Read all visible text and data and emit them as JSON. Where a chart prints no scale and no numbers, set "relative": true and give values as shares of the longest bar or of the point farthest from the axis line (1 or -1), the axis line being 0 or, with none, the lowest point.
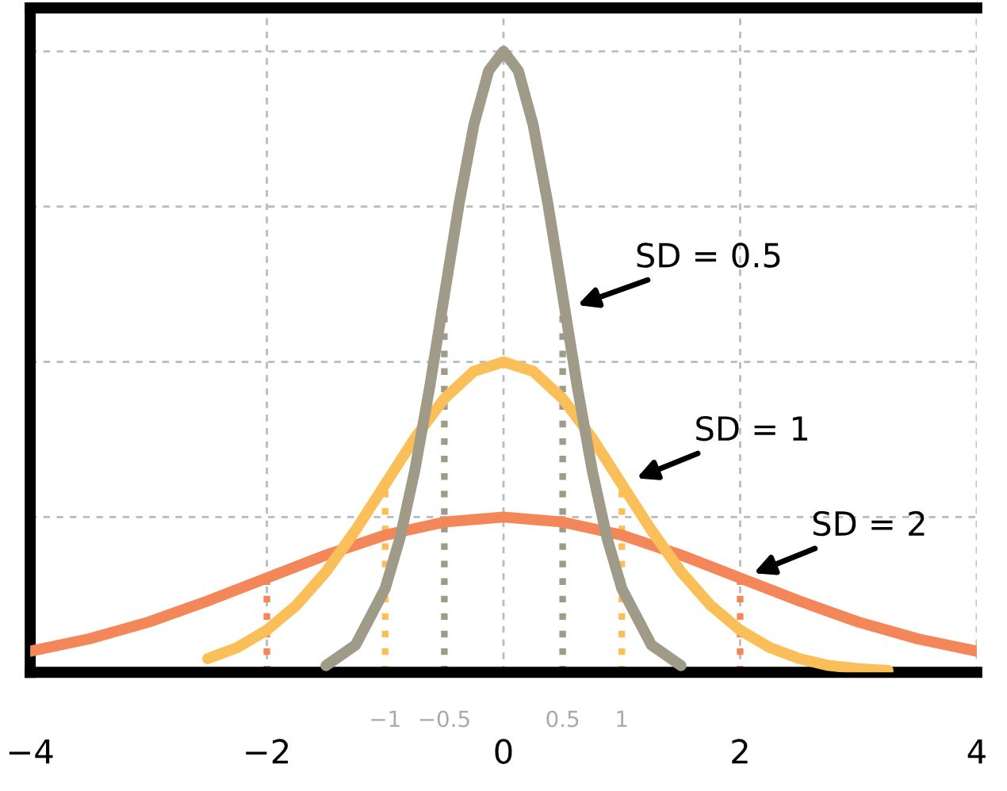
{
  "chart_data": {
    "type": "line",
    "relative": true,
    "xlim": [
      -4,
      4
    ],
    "xticks": [
      {
        "value": -4,
        "label": "−4"
      },
      {
        "value": -2,
        "label": "−2"
      },
      0,
      2,
      4
    ],
    "grid": true,
    "line_style": "solid",
    "series": [
      {
        "color": "#f4875a",
        "x": [
          -4,
          -3.5,
          -3,
          -2.5,
          -2,
          -1.5,
          -1,
          -0.5,
          0,
          0.5,
          1,
          1.5,
          2,
          2.5,
          3,
          3.5,
          4
        ],
        "values": [
          0.034,
          0.054,
          0.081,
          0.115,
          0.152,
          0.189,
          0.221,
          0.242,
          0.25,
          0.242,
          0.221,
          0.189,
          0.152,
          0.115,
          0.081,
          0.054,
          0.034
        ]
      },
      {
        "color": "#fbbf5a",
        "x": [
          -2.5,
          -2.25,
          -2,
          -1.75,
          -1.5,
          -1.25,
          -1,
          -0.75,
          -0.5,
          -0.25,
          0,
          0.25,
          0.5,
          0.75,
          1,
          1.25,
          1.5,
          1.75,
          2,
          2.25,
          2.5,
          2.75,
          3,
          3.25
        ],
        "values": [
          0.022,
          0.04,
          0.068,
          0.108,
          0.162,
          0.229,
          0.303,
          0.377,
          0.441,
          0.485,
          0.5,
          0.485,
          0.441,
          0.377,
          0.303,
          0.229,
          0.162,
          0.108,
          0.068,
          0.04,
          0.022,
          0.011,
          0.006,
          0.003
        ]
      },
      {
        "color": "#a09a88",
        "x": [
          -1.5,
          -1.25,
          -1,
          -0.875,
          -0.75,
          -0.625,
          -0.5,
          -0.375,
          -0.25,
          -0.125,
          0,
          0.125,
          0.25,
          0.375,
          0.5,
          0.625,
          0.75,
          0.875,
          1,
          1.25,
          1.5
        ],
        "values": [
          0.011,
          0.044,
          0.135,
          0.216,
          0.325,
          0.458,
          0.607,
          0.755,
          0.882,
          0.969,
          1,
          0.969,
          0.882,
          0.755,
          0.607,
          0.458,
          0.325,
          0.216,
          0.135,
          0.044,
          0.011
        ]
      }
    ],
    "ref_lines": [
      {
        "axis": "x",
        "value": -0.5,
        "label": "−0.5",
        "color": "#a09a88",
        "line_style": "dotted"
      },
      {
        "axis": "x",
        "value": 0.5,
        "label": "0.5",
        "color": "#a09a88",
        "line_style": "dotted"
      },
      {
        "axis": "x",
        "value": -1,
        "label": "−1",
        "color": "#fbbf5a",
        "line_style": "dotted"
      },
      {
        "axis": "x",
        "value": 1,
        "label": "1",
        "color": "#fbbf5a",
        "line_style": "dotted"
      },
      {
        "axis": "x",
        "value": -2,
        "color": "#f4875a",
        "line_style": "dotted"
      },
      {
        "axis": "x",
        "value": 2,
        "color": "#f4875a",
        "line_style": "dotted"
      }
    ],
    "annotations": [
      {
        "text": "SD = 0.5",
        "x": 0.59,
        "y": 0.589
      },
      {
        "text": "SD = 1",
        "x": 1.09,
        "y": 0.31
      },
      {
        "text": "SD = 2",
        "x": 2.08,
        "y": 0.157
      }
    ]
  }
}
